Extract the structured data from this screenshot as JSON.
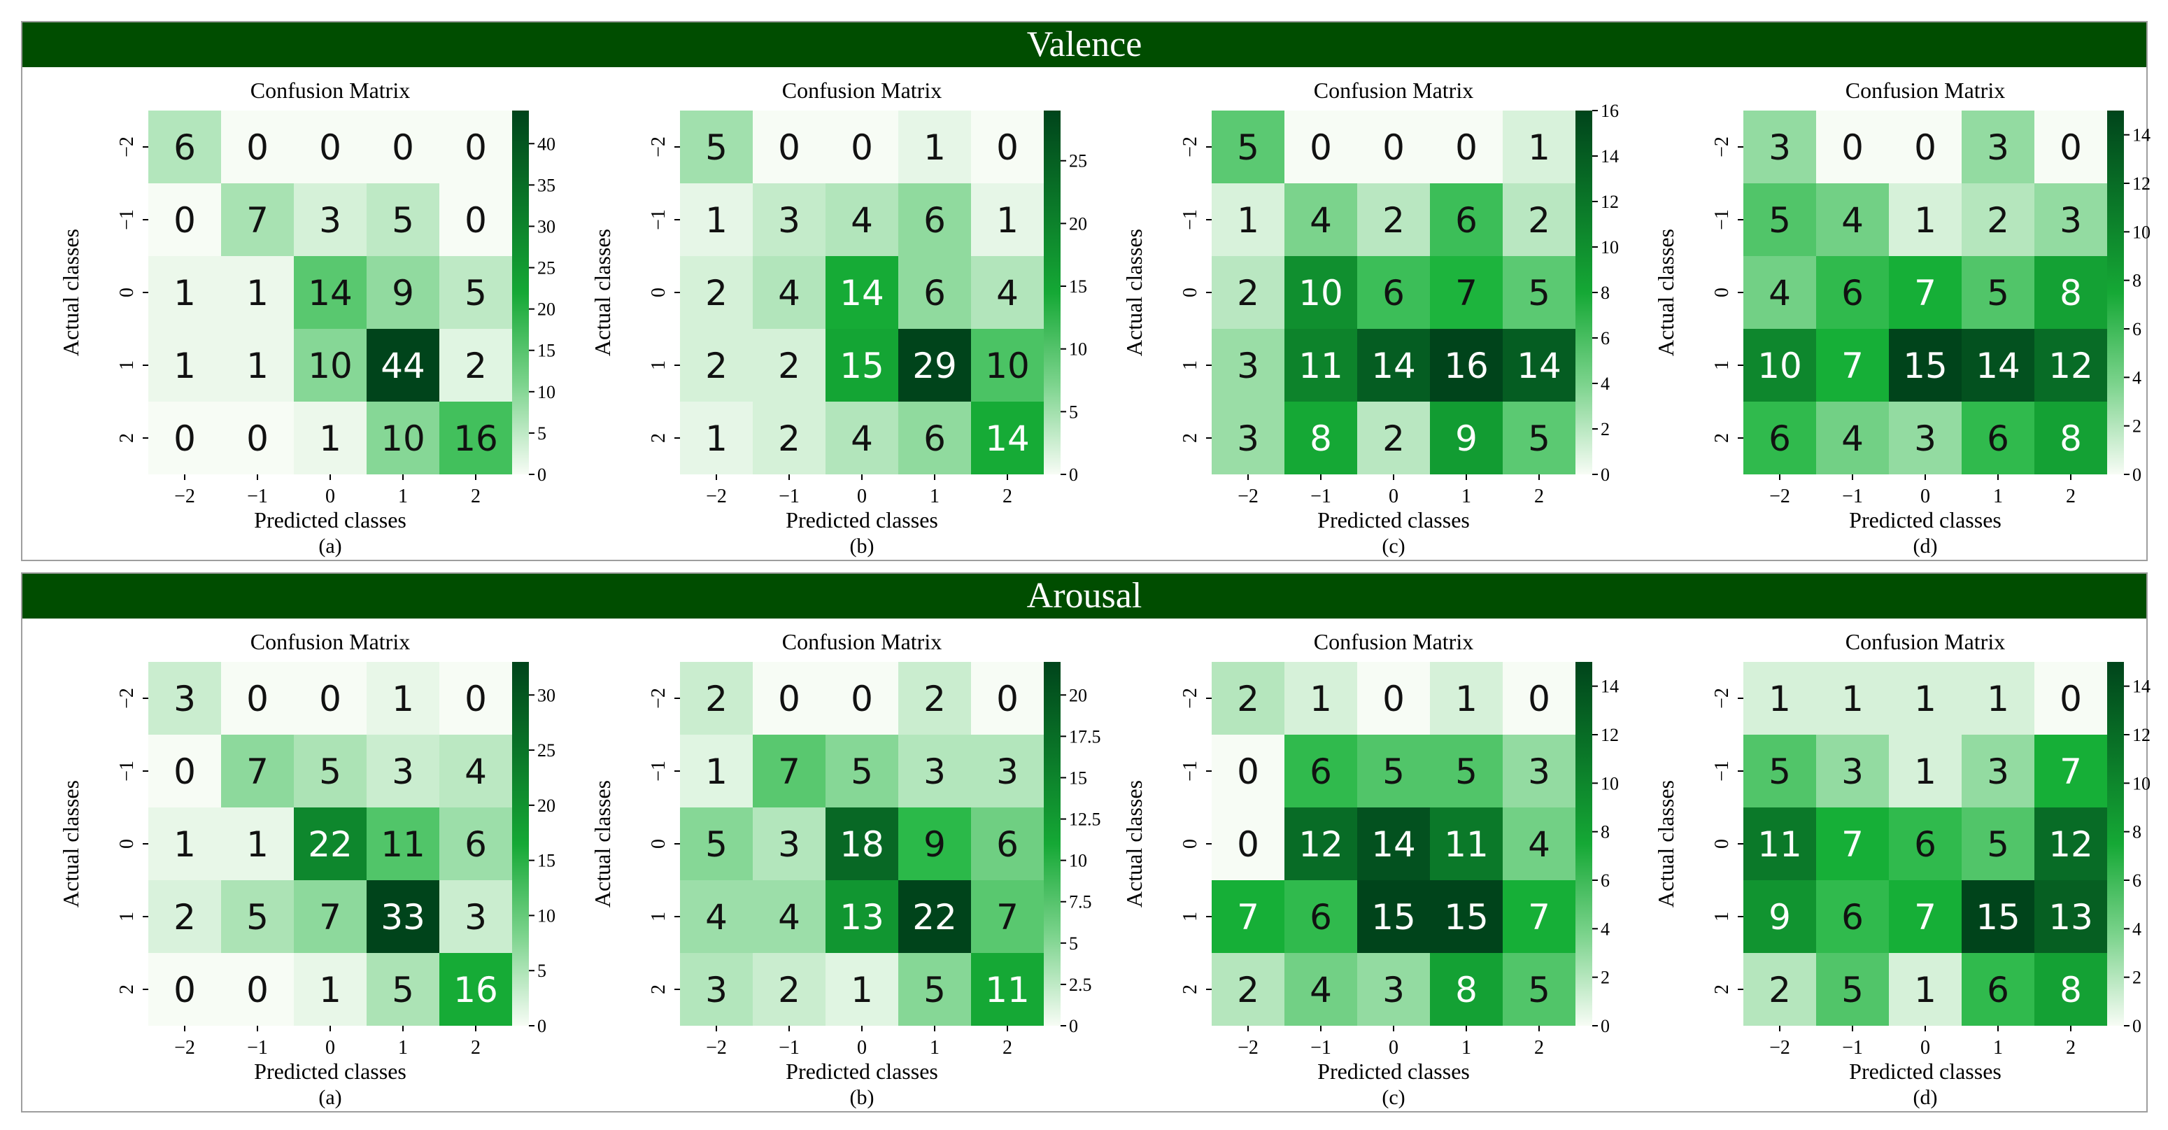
{
  "sections": [
    {
      "title": "Valence",
      "panels": [
        {
          "title": "Confusion Matrix",
          "label": "(a)",
          "vmax": 44,
          "ticks": [
            0,
            5,
            10,
            15,
            20,
            25,
            30,
            35,
            40
          ],
          "matrix": [
            [
              6,
              0,
              0,
              0,
              0
            ],
            [
              0,
              7,
              3,
              5,
              0
            ],
            [
              1,
              1,
              14,
              9,
              5
            ],
            [
              1,
              1,
              10,
              44,
              2
            ],
            [
              0,
              0,
              1,
              10,
              16
            ]
          ]
        },
        {
          "title": "Confusion Matrix",
          "label": "(b)",
          "vmax": 29,
          "ticks": [
            0,
            5,
            10,
            15,
            20,
            25
          ],
          "matrix": [
            [
              5,
              0,
              0,
              1,
              0
            ],
            [
              1,
              3,
              4,
              6,
              1
            ],
            [
              2,
              4,
              14,
              6,
              4
            ],
            [
              2,
              2,
              15,
              29,
              10
            ],
            [
              1,
              2,
              4,
              6,
              14
            ]
          ]
        },
        {
          "title": "Confusion Matrix",
          "label": "(c)",
          "vmax": 16,
          "ticks": [
            0,
            2,
            4,
            6,
            8,
            10,
            12,
            14,
            16
          ],
          "matrix": [
            [
              5,
              0,
              0,
              0,
              1
            ],
            [
              1,
              4,
              2,
              6,
              2
            ],
            [
              2,
              10,
              6,
              7,
              5
            ],
            [
              3,
              11,
              14,
              16,
              14
            ],
            [
              3,
              8,
              2,
              9,
              5
            ]
          ]
        },
        {
          "title": "Confusion Matrix",
          "label": "(d)",
          "vmax": 15,
          "ticks": [
            0,
            2,
            4,
            6,
            8,
            10,
            12,
            14
          ],
          "matrix": [
            [
              3,
              0,
              0,
              3,
              0
            ],
            [
              5,
              4,
              1,
              2,
              3
            ],
            [
              4,
              6,
              7,
              5,
              8
            ],
            [
              10,
              7,
              15,
              14,
              12
            ],
            [
              6,
              4,
              3,
              6,
              8
            ]
          ]
        }
      ]
    },
    {
      "title": "Arousal",
      "panels": [
        {
          "title": "Confusion Matrix",
          "label": "(a)",
          "vmax": 33,
          "ticks": [
            0,
            5,
            10,
            15,
            20,
            25,
            30
          ],
          "matrix": [
            [
              3,
              0,
              0,
              1,
              0
            ],
            [
              0,
              7,
              5,
              3,
              4
            ],
            [
              1,
              1,
              22,
              11,
              6
            ],
            [
              2,
              5,
              7,
              33,
              3
            ],
            [
              0,
              0,
              1,
              5,
              16
            ]
          ]
        },
        {
          "title": "Confusion Matrix",
          "label": "(b)",
          "vmax": 22,
          "ticks": [
            "0",
            "2.5",
            "5",
            "7.5",
            "10",
            "12.5",
            "15",
            "17.5",
            "20"
          ],
          "matrix": [
            [
              2,
              0,
              0,
              2,
              0
            ],
            [
              1,
              7,
              5,
              3,
              3
            ],
            [
              5,
              3,
              18,
              9,
              6
            ],
            [
              4,
              4,
              13,
              22,
              7
            ],
            [
              3,
              2,
              1,
              5,
              11
            ]
          ]
        },
        {
          "title": "Confusion Matrix",
          "label": "(c)",
          "vmax": 15,
          "ticks": [
            0,
            2,
            4,
            6,
            8,
            10,
            12,
            14
          ],
          "matrix": [
            [
              2,
              1,
              0,
              1,
              0
            ],
            [
              0,
              6,
              5,
              5,
              3
            ],
            [
              0,
              12,
              14,
              11,
              4
            ],
            [
              7,
              6,
              15,
              15,
              7
            ],
            [
              2,
              4,
              3,
              8,
              5
            ]
          ]
        },
        {
          "title": "Confusion Matrix",
          "label": "(d)",
          "vmax": 15,
          "ticks": [
            0,
            2,
            4,
            6,
            8,
            10,
            12,
            14
          ],
          "matrix": [
            [
              1,
              1,
              1,
              1,
              0
            ],
            [
              5,
              3,
              1,
              3,
              7
            ],
            [
              11,
              7,
              6,
              5,
              12
            ],
            [
              9,
              6,
              7,
              15,
              13
            ],
            [
              2,
              5,
              1,
              6,
              8
            ]
          ]
        }
      ]
    }
  ],
  "axis": {
    "xlabel": "Predicted classes",
    "ylabel": "Actual classes",
    "classes": [
      "−2",
      "−1",
      "0",
      "1",
      "2"
    ]
  },
  "colors": {
    "banner": "#004d00",
    "scale_low": "#f7fcf5",
    "scale_mid": "#17b238",
    "scale_high": "#00441b"
  },
  "chart_data": [
    {
      "type": "heatmap",
      "group": "Valence",
      "panel": "(a)",
      "title": "Confusion Matrix",
      "xlabel": "Predicted classes",
      "ylabel": "Actual classes",
      "categories": [
        "-2",
        "-1",
        "0",
        "1",
        "2"
      ],
      "values": [
        [
          6,
          0,
          0,
          0,
          0
        ],
        [
          0,
          7,
          3,
          5,
          0
        ],
        [
          1,
          1,
          14,
          9,
          5
        ],
        [
          1,
          1,
          10,
          44,
          2
        ],
        [
          0,
          0,
          1,
          10,
          16
        ]
      ],
      "colorbar_range": [
        0,
        44
      ]
    },
    {
      "type": "heatmap",
      "group": "Valence",
      "panel": "(b)",
      "title": "Confusion Matrix",
      "xlabel": "Predicted classes",
      "ylabel": "Actual classes",
      "categories": [
        "-2",
        "-1",
        "0",
        "1",
        "2"
      ],
      "values": [
        [
          5,
          0,
          0,
          1,
          0
        ],
        [
          1,
          3,
          4,
          6,
          1
        ],
        [
          2,
          4,
          14,
          6,
          4
        ],
        [
          2,
          2,
          15,
          29,
          10
        ],
        [
          1,
          2,
          4,
          6,
          14
        ]
      ],
      "colorbar_range": [
        0,
        29
      ]
    },
    {
      "type": "heatmap",
      "group": "Valence",
      "panel": "(c)",
      "title": "Confusion Matrix",
      "xlabel": "Predicted classes",
      "ylabel": "Actual classes",
      "categories": [
        "-2",
        "-1",
        "0",
        "1",
        "2"
      ],
      "values": [
        [
          5,
          0,
          0,
          0,
          1
        ],
        [
          1,
          4,
          2,
          6,
          2
        ],
        [
          2,
          10,
          6,
          7,
          5
        ],
        [
          3,
          11,
          14,
          16,
          14
        ],
        [
          3,
          8,
          2,
          9,
          5
        ]
      ],
      "colorbar_range": [
        0,
        16
      ]
    },
    {
      "type": "heatmap",
      "group": "Valence",
      "panel": "(d)",
      "title": "Confusion Matrix",
      "xlabel": "Predicted classes",
      "ylabel": "Actual classes",
      "categories": [
        "-2",
        "-1",
        "0",
        "1",
        "2"
      ],
      "values": [
        [
          3,
          0,
          0,
          3,
          0
        ],
        [
          5,
          4,
          1,
          2,
          3
        ],
        [
          4,
          6,
          7,
          5,
          8
        ],
        [
          10,
          7,
          15,
          14,
          12
        ],
        [
          6,
          4,
          3,
          6,
          8
        ]
      ],
      "colorbar_range": [
        0,
        15
      ]
    },
    {
      "type": "heatmap",
      "group": "Arousal",
      "panel": "(a)",
      "title": "Confusion Matrix",
      "xlabel": "Predicted classes",
      "ylabel": "Actual classes",
      "categories": [
        "-2",
        "-1",
        "0",
        "1",
        "2"
      ],
      "values": [
        [
          3,
          0,
          0,
          1,
          0
        ],
        [
          0,
          7,
          5,
          3,
          4
        ],
        [
          1,
          1,
          22,
          11,
          6
        ],
        [
          2,
          5,
          7,
          33,
          3
        ],
        [
          0,
          0,
          1,
          5,
          16
        ]
      ],
      "colorbar_range": [
        0,
        33
      ]
    },
    {
      "type": "heatmap",
      "group": "Arousal",
      "panel": "(b)",
      "title": "Confusion Matrix",
      "xlabel": "Predicted classes",
      "ylabel": "Actual classes",
      "categories": [
        "-2",
        "-1",
        "0",
        "1",
        "2"
      ],
      "values": [
        [
          2,
          0,
          0,
          2,
          0
        ],
        [
          1,
          7,
          5,
          3,
          3
        ],
        [
          5,
          3,
          18,
          9,
          6
        ],
        [
          4,
          4,
          13,
          22,
          7
        ],
        [
          3,
          2,
          1,
          5,
          11
        ]
      ],
      "colorbar_range": [
        0,
        22
      ]
    },
    {
      "type": "heatmap",
      "group": "Arousal",
      "panel": "(c)",
      "title": "Confusion Matrix",
      "xlabel": "Predicted classes",
      "ylabel": "Actual classes",
      "categories": [
        "-2",
        "-1",
        "0",
        "1",
        "2"
      ],
      "values": [
        [
          2,
          1,
          0,
          1,
          0
        ],
        [
          0,
          6,
          5,
          5,
          3
        ],
        [
          0,
          12,
          14,
          11,
          4
        ],
        [
          7,
          6,
          15,
          15,
          7
        ],
        [
          2,
          4,
          3,
          8,
          5
        ]
      ],
      "colorbar_range": [
        0,
        15
      ]
    },
    {
      "type": "heatmap",
      "group": "Arousal",
      "panel": "(d)",
      "title": "Confusion Matrix",
      "xlabel": "Predicted classes",
      "ylabel": "Actual classes",
      "categories": [
        "-2",
        "-1",
        "0",
        "1",
        "2"
      ],
      "values": [
        [
          1,
          1,
          1,
          1,
          0
        ],
        [
          5,
          3,
          1,
          3,
          7
        ],
        [
          11,
          7,
          6,
          5,
          12
        ],
        [
          9,
          6,
          7,
          15,
          13
        ],
        [
          2,
          5,
          1,
          6,
          8
        ]
      ],
      "colorbar_range": [
        0,
        15
      ]
    }
  ]
}
